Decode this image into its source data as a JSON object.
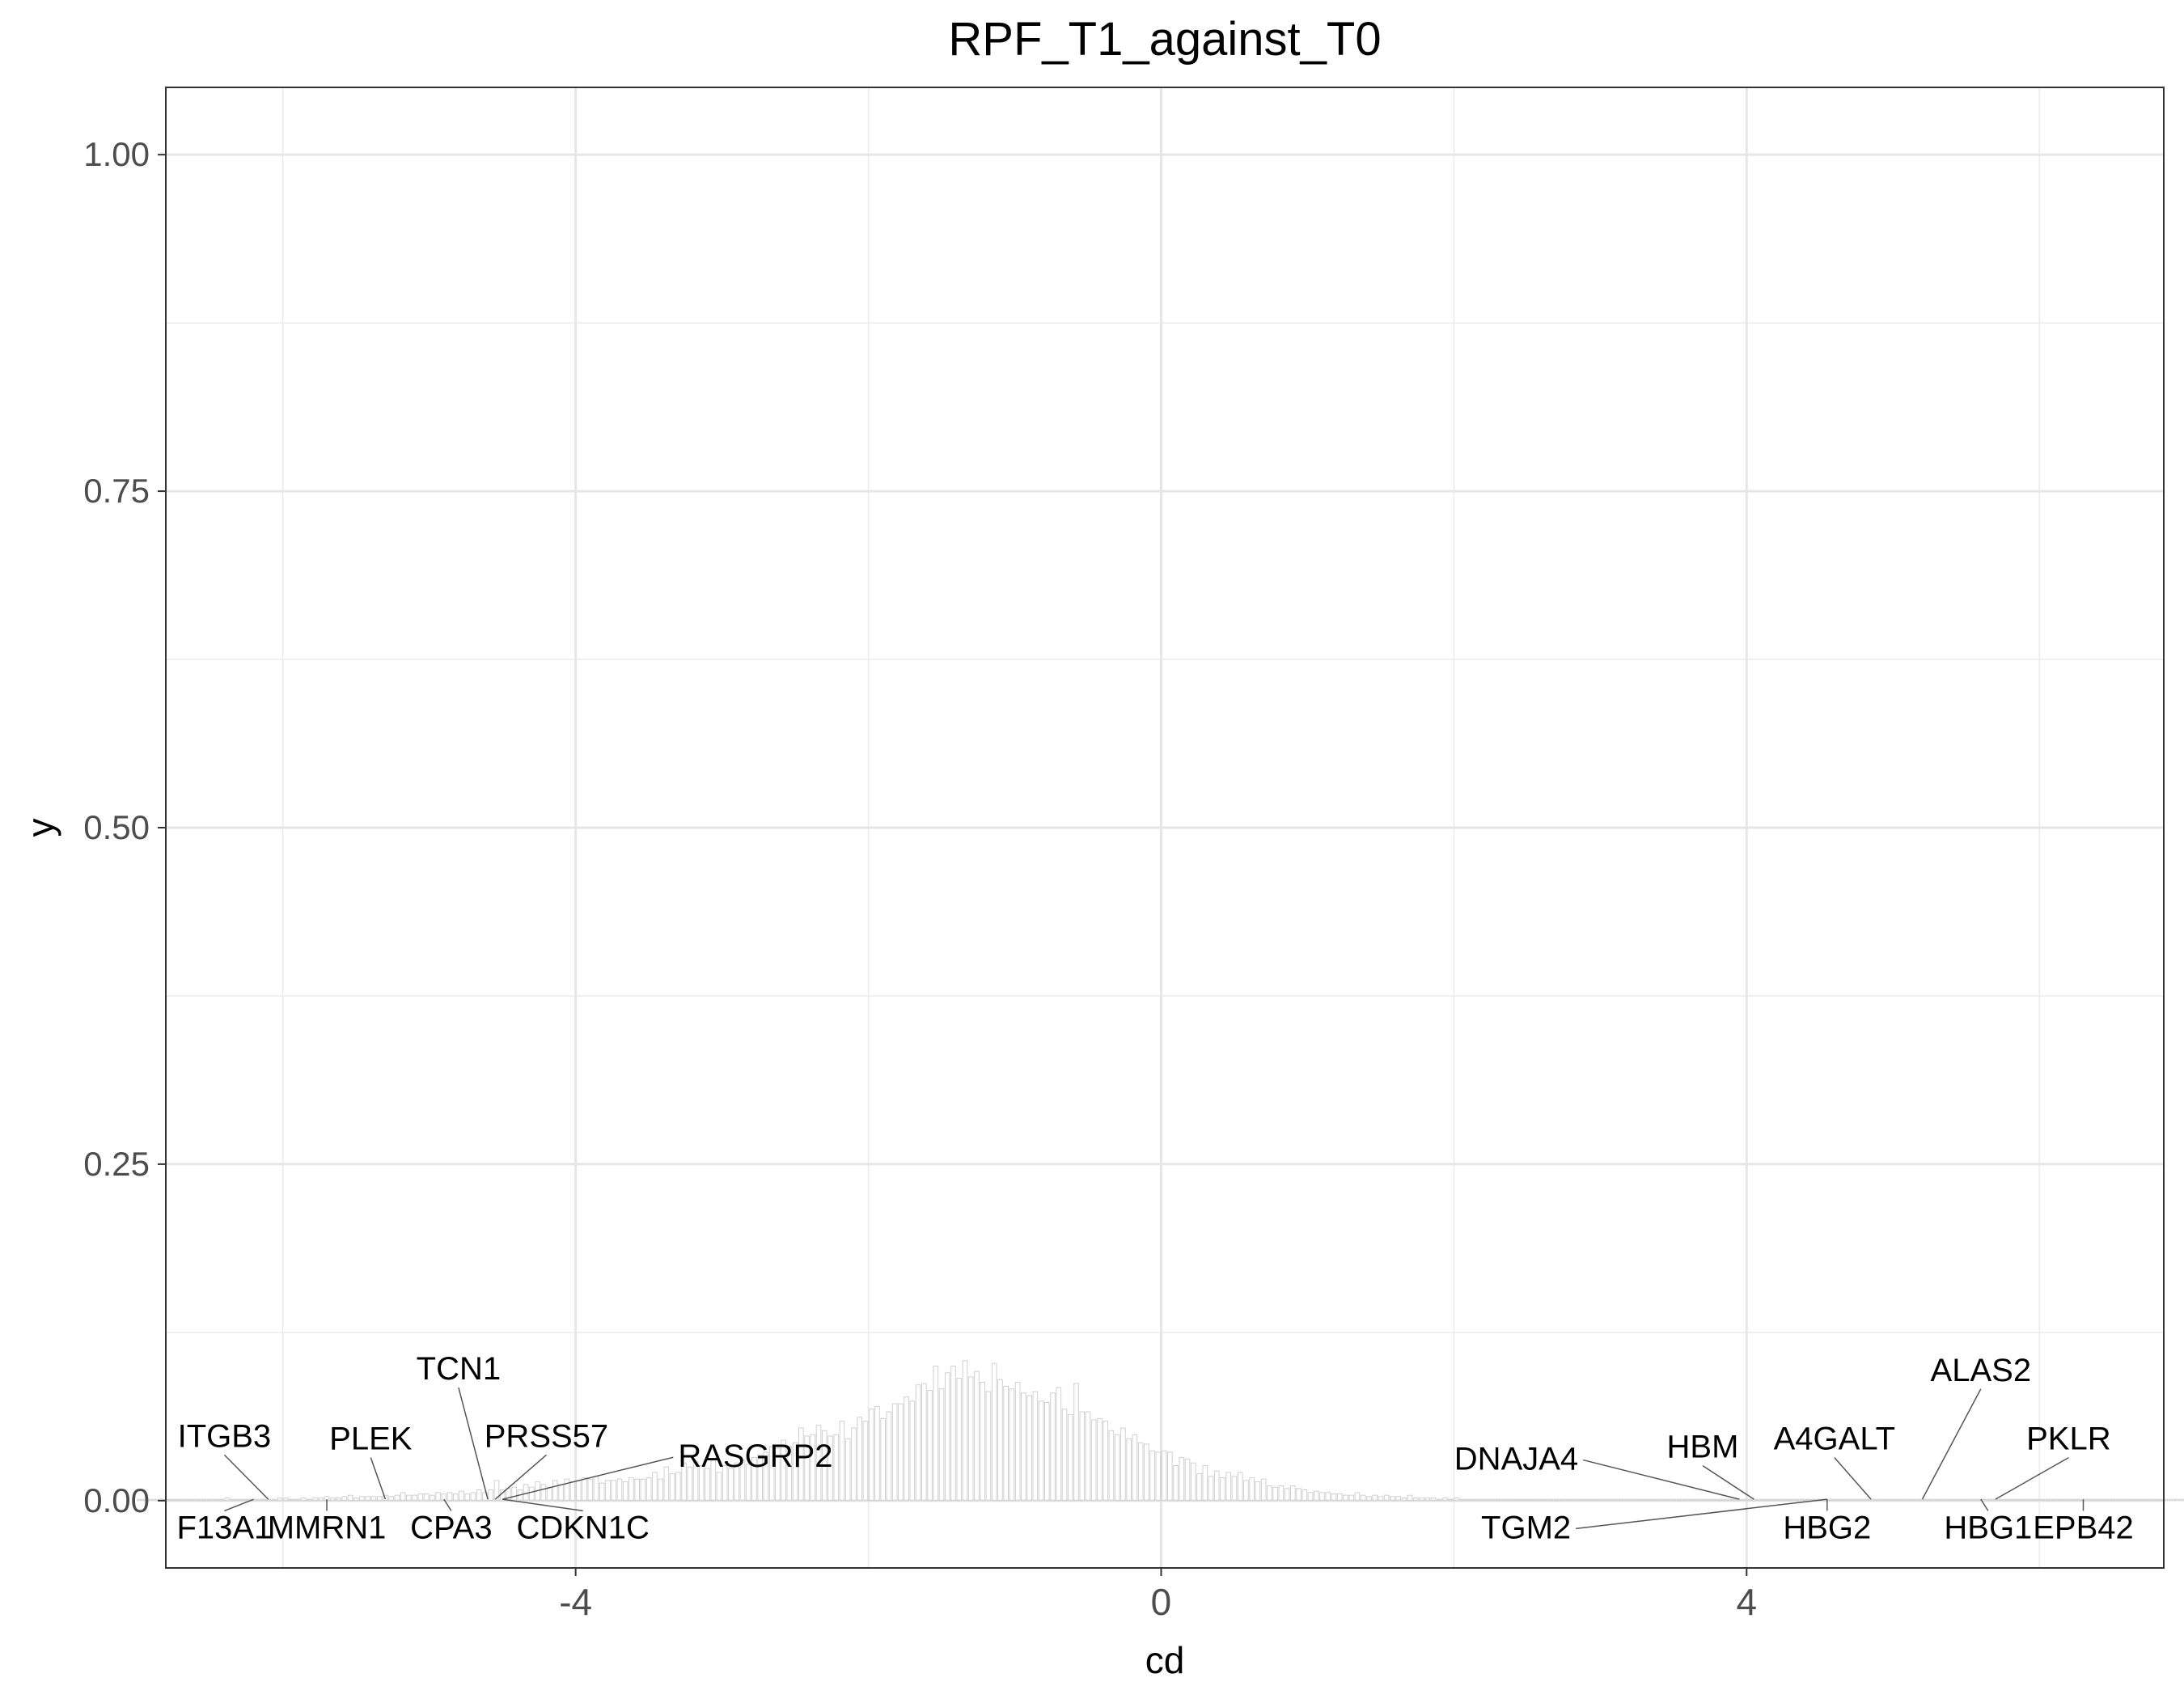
{
  "chart_data": {
    "type": "bar",
    "title": "RPF_T1_against_T0",
    "xlabel": "cd",
    "ylabel": "y",
    "xlim": [
      -6.8,
      6.85
    ],
    "ylim": [
      -0.05,
      1.05
    ],
    "x_ticks": [
      {
        "value": -4,
        "label": "-4"
      },
      {
        "value": 0,
        "label": "0"
      },
      {
        "value": 4,
        "label": "4"
      }
    ],
    "x_minor_gridlines": [
      -6,
      -2,
      2,
      6
    ],
    "y_ticks": [
      {
        "value": 0,
        "label": "0.00"
      },
      {
        "value": 0.25,
        "label": "0.25"
      },
      {
        "value": 0.5,
        "label": "0.50"
      },
      {
        "value": 0.75,
        "label": "0.75"
      },
      {
        "value": 1.0,
        "label": "1.00"
      }
    ],
    "y_minor_gridlines": [
      0.125,
      0.375,
      0.625,
      0.875
    ],
    "grid": true,
    "legend": "none",
    "bar_color": "#d0d0d0",
    "histogram": {
      "bin_width": 0.04,
      "values": [
        0.001,
        0.001,
        0.001,
        0.001,
        0.001,
        0.001,
        0.001,
        0.001,
        0.001,
        0.001,
        0.001,
        0.001,
        0.001,
        0.001,
        0.001,
        0.002,
        0.001,
        0.001,
        0.001,
        0.001,
        0.001,
        0.001,
        0.001,
        0.001,
        0.002,
        0.002,
        0.001,
        0.001,
        0.002,
        0.001,
        0.002,
        0.002,
        0.003,
        0.002,
        0.002,
        0.003,
        0.004,
        0.002,
        0.003,
        0.003,
        0.003,
        0.003,
        0.004,
        0.003,
        0.004,
        0.006,
        0.004,
        0.004,
        0.005,
        0.005,
        0.004,
        0.006,
        0.005,
        0.006,
        0.005,
        0.007,
        0.005,
        0.006,
        0.008,
        0.006,
        0.008,
        0.015,
        0.008,
        0.009,
        0.01,
        0.008,
        0.012,
        0.01,
        0.014,
        0.012,
        0.01,
        0.015,
        0.012,
        0.016,
        0.014,
        0.015,
        0.017,
        0.016,
        0.018,
        0.013,
        0.015,
        0.015,
        0.016,
        0.014,
        0.017,
        0.016,
        0.016,
        0.017,
        0.021,
        0.016,
        0.025,
        0.02,
        0.021,
        0.028,
        0.025,
        0.029,
        0.026,
        0.024,
        0.03,
        0.021,
        0.026,
        0.024,
        0.028,
        0.03,
        0.027,
        0.032,
        0.034,
        0.036,
        0.04,
        0.039,
        0.045,
        0.04,
        0.043,
        0.054,
        0.048,
        0.049,
        0.056,
        0.052,
        0.048,
        0.049,
        0.059,
        0.046,
        0.054,
        0.062,
        0.059,
        0.068,
        0.07,
        0.061,
        0.066,
        0.072,
        0.072,
        0.077,
        0.074,
        0.086,
        0.087,
        0.082,
        0.1,
        0.083,
        0.095,
        0.1,
        0.091,
        0.104,
        0.092,
        0.096,
        0.088,
        0.081,
        0.102,
        0.09,
        0.085,
        0.083,
        0.088,
        0.08,
        0.078,
        0.081,
        0.074,
        0.073,
        0.08,
        0.084,
        0.068,
        0.064,
        0.087,
        0.066,
        0.066,
        0.06,
        0.061,
        0.059,
        0.052,
        0.049,
        0.054,
        0.046,
        0.049,
        0.043,
        0.042,
        0.037,
        0.036,
        0.037,
        0.036,
        0.026,
        0.032,
        0.031,
        0.028,
        0.02,
        0.026,
        0.018,
        0.022,
        0.017,
        0.021,
        0.018,
        0.021,
        0.015,
        0.017,
        0.014,
        0.016,
        0.011,
        0.01,
        0.011,
        0.009,
        0.011,
        0.009,
        0.008,
        0.006,
        0.007,
        0.006,
        0.006,
        0.005,
        0.005,
        0.004,
        0.004,
        0.006,
        0.004,
        0.003,
        0.004,
        0.003,
        0.004,
        0.003,
        0.003,
        0.002,
        0.004,
        0.002,
        0.002,
        0.002,
        0.002,
        0.001,
        0.002,
        0.001,
        0.002,
        0.001,
        0.001,
        0.001,
        0.001,
        0.001,
        0.001,
        0.001,
        0.001,
        0.001,
        0.001,
        0.001,
        0.001,
        0.001,
        0.001,
        0.001,
        0.001,
        0.001,
        0.001,
        0.001,
        0.001,
        0.001,
        0.001,
        0.001,
        0.001,
        0.001,
        0.001,
        0.001,
        0.001,
        0.001,
        0.001,
        0.001,
        0.001,
        0.001,
        0.001,
        0.001,
        0.001,
        0.001,
        0.001,
        0.001,
        0.001,
        0.001,
        0.001,
        0.001,
        0.001,
        0.001,
        0.001,
        0.001,
        0.001,
        0.001,
        0.001,
        0.001,
        0.001,
        0.001,
        0.001,
        0.001,
        0.001,
        0.001,
        0.001,
        0.001,
        0.001,
        0.001,
        0.001,
        0.001,
        0.001,
        0.001,
        0.001,
        0.001,
        0.001,
        0.001,
        0.001,
        0.001,
        0.001,
        0.001,
        0.001,
        0.001,
        0.001,
        0.001,
        0.001,
        0.001,
        0.001,
        0.001,
        0.001,
        0.001,
        0.001,
        0.001,
        0.001,
        0.001,
        0.001,
        0.001,
        0.001,
        0.001,
        0.001,
        0.001,
        0.001,
        0.001,
        0.001,
        0.001,
        0.001,
        0.001,
        0.001,
        0.001,
        0.001,
        0.001,
        0.001,
        0.001,
        0.001,
        0.001,
        0.001,
        0.001,
        0.001,
        0.001,
        0.001,
        0.001,
        0.001,
        0.001,
        0.001,
        0.001,
        0.001,
        0.001,
        0.001,
        0.001,
        0.001,
        0.001,
        0.001
      ]
    },
    "labeled_genes": [
      {
        "gene": "ITGB3",
        "x": -6.1,
        "label_x": -6.4,
        "label_y": 0.04,
        "anchor": "middle"
      },
      {
        "gene": "F13A1",
        "x": -6.2,
        "label_x": -6.4,
        "label_y": -0.028,
        "anchor": "middle"
      },
      {
        "gene": "MMRN1",
        "x": -5.7,
        "label_x": -5.7,
        "label_y": -0.028,
        "anchor": "middle"
      },
      {
        "gene": "PLEK",
        "x": -5.3,
        "label_x": -5.4,
        "label_y": 0.038,
        "anchor": "middle"
      },
      {
        "gene": "CPA3",
        "x": -4.9,
        "label_x": -4.85,
        "label_y": -0.028,
        "anchor": "middle"
      },
      {
        "gene": "TCN1",
        "x": -4.6,
        "label_x": -4.8,
        "label_y": 0.09,
        "anchor": "middle"
      },
      {
        "gene": "PRSS57",
        "x": -4.55,
        "label_x": -4.2,
        "label_y": 0.04,
        "anchor": "middle"
      },
      {
        "gene": "CDKN1C",
        "x": -4.5,
        "label_x": -3.95,
        "label_y": -0.028,
        "anchor": "middle"
      },
      {
        "gene": "RASGRP2",
        "x": -4.5,
        "label_x": -3.3,
        "label_y": 0.025,
        "anchor": "start"
      },
      {
        "gene": "DNAJA4",
        "x": 3.95,
        "label_x": 2.85,
        "label_y": 0.023,
        "anchor": "end"
      },
      {
        "gene": "TGM2",
        "x": 4.55,
        "label_x": 2.8,
        "label_y": -0.028,
        "anchor": "end"
      },
      {
        "gene": "HBM",
        "x": 4.05,
        "label_x": 3.7,
        "label_y": 0.032,
        "anchor": "middle"
      },
      {
        "gene": "HBG2",
        "x": 4.55,
        "label_x": 4.55,
        "label_y": -0.028,
        "anchor": "middle"
      },
      {
        "gene": "A4GALT",
        "x": 4.85,
        "label_x": 4.6,
        "label_y": 0.038,
        "anchor": "middle"
      },
      {
        "gene": "ALAS2",
        "x": 5.2,
        "label_x": 5.6,
        "label_y": 0.089,
        "anchor": "middle"
      },
      {
        "gene": "HBG1",
        "x": 5.6,
        "label_x": 5.65,
        "label_y": -0.028,
        "anchor": "middle"
      },
      {
        "gene": "PKLR",
        "x": 5.7,
        "label_x": 6.2,
        "label_y": 0.038,
        "anchor": "middle"
      },
      {
        "gene": "EPB42",
        "x": 6.3,
        "label_x": 6.3,
        "label_y": -0.028,
        "anchor": "middle"
      }
    ]
  }
}
